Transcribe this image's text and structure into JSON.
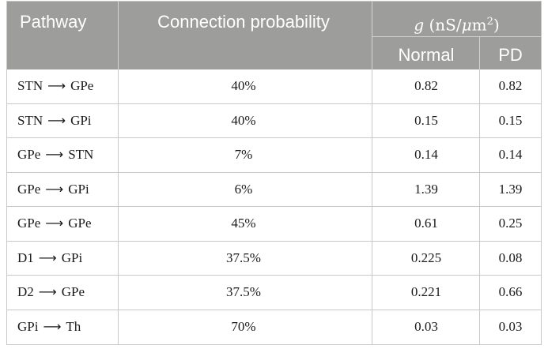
{
  "header": {
    "pathway": "Pathway",
    "connection_probability": "Connection probability",
    "g_symbol": "g",
    "g_unit_open": " (nS/",
    "g_unit_mu": "μ",
    "g_unit_m": "m",
    "g_unit_exp": "2",
    "g_unit_close": ")",
    "normal": "Normal",
    "pd": "PD"
  },
  "rows": [
    {
      "source": "STN",
      "arrow": "⟶",
      "target": "GPe",
      "probability": "40%",
      "normal": "0.82",
      "pd": "0.82"
    },
    {
      "source": "STN",
      "arrow": "⟶",
      "target": "GPi",
      "probability": "40%",
      "normal": "0.15",
      "pd": "0.15"
    },
    {
      "source": "GPe",
      "arrow": "⟶",
      "target": "STN",
      "probability": "7%",
      "normal": "0.14",
      "pd": "0.14"
    },
    {
      "source": "GPe",
      "arrow": "⟶",
      "target": "GPi",
      "probability": "6%",
      "normal": "1.39",
      "pd": "1.39"
    },
    {
      "source": "GPe",
      "arrow": "⟶",
      "target": "GPe",
      "probability": "45%",
      "normal": "0.61",
      "pd": "0.25"
    },
    {
      "source": "D1",
      "arrow": "⟶",
      "target": "GPi",
      "probability": "37.5%",
      "normal": "0.225",
      "pd": "0.08"
    },
    {
      "source": "D2",
      "arrow": "⟶",
      "target": "GPe",
      "probability": "37.5%",
      "normal": "0.221",
      "pd": "0.66"
    },
    {
      "source": "GPi",
      "arrow": "⟶",
      "target": "Th",
      "probability": "70%",
      "normal": "0.03",
      "pd": "0.03"
    }
  ]
}
